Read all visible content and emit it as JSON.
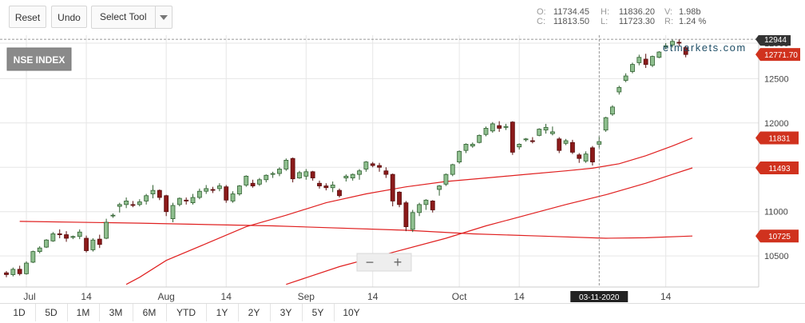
{
  "toolbar": {
    "reset_label": "Reset",
    "undo_label": "Undo",
    "select_tool_label": "Select Tool"
  },
  "ohlc": {
    "o_label": "O:",
    "o_value": "11734.45",
    "h_label": "H:",
    "h_value": "11836.20",
    "v_label": "V:",
    "v_value": "1.98b",
    "c_label": "C:",
    "c_value": "11813.50",
    "l_label": "L:",
    "l_value": "11723.30",
    "r_label": "R:",
    "r_value": "1.24 %"
  },
  "chart_title": "NSE INDEX",
  "watermark": "etmarkets.com",
  "crosshair_date": "03-11-2020",
  "zoom": {
    "minus": "−",
    "plus": "+"
  },
  "range_buttons": [
    "1D",
    "5D",
    "1M",
    "3M",
    "6M",
    "YTD",
    "1Y",
    "2Y",
    "3Y",
    "5Y",
    "10Y"
  ],
  "colors": {
    "up": "#2e7d32",
    "up_fill": "#8fbf8f",
    "down": "#8b1a1a",
    "ma": "#e02020",
    "last_tag": "#d0321e",
    "crosshair_tag": "#333333"
  },
  "chart_data": {
    "type": "candlestick",
    "ylim": [
      10150,
      12990
    ],
    "ytick_labels": [
      "10500",
      "11000",
      "11500",
      "12000",
      "12500",
      "12900"
    ],
    "ytick_values": [
      10500,
      11000,
      11500,
      12000,
      12500,
      12900
    ],
    "xtick_labels": [
      "Jul",
      "14",
      "Aug",
      "14",
      "Sep",
      "14",
      "Oct",
      "14",
      "14"
    ],
    "xtick_index": [
      3,
      12,
      24,
      33,
      45,
      55,
      68,
      77,
      99
    ],
    "crosshair_index": 89,
    "crosshair_price_label": "12944",
    "last_price_label": "12771.70",
    "last_price": 12772,
    "series": [
      {
        "name": "11831",
        "data": [
          10950,
          10950,
          10950,
          10950,
          10950,
          10950,
          10950,
          10950,
          10950,
          10950,
          10950,
          10950,
          10950,
          10950,
          10950,
          10950,
          10950,
          10950,
          10950,
          10950,
          10950,
          10950,
          10950,
          10950,
          10950,
          10950,
          10950,
          10950,
          10950,
          10950,
          10950,
          10950,
          10950,
          10950,
          10950,
          10950,
          10950,
          10950,
          10950,
          10950,
          10950,
          10950,
          10950,
          10950,
          10950,
          10950,
          10950,
          10950,
          10950,
          10950,
          10950,
          10950,
          10950,
          10950,
          10950,
          10950,
          10950,
          10950,
          10950,
          10950,
          10950,
          10950,
          10950,
          10950,
          10950,
          10950,
          10950,
          10950,
          10950,
          10950,
          10950,
          10950,
          10950,
          10950,
          10950,
          10950,
          10950,
          10950,
          10950,
          10950,
          10950,
          10950,
          10950,
          10950,
          10950,
          10950,
          10950,
          10950,
          10950,
          10950,
          10950,
          10950,
          10950,
          10950,
          10950,
          10950,
          10950,
          10950,
          10950,
          10950,
          10950,
          10950,
          10950
        ]
      },
      {
        "name": "11493",
        "data": []
      },
      {
        "name": "10725",
        "data": []
      }
    ],
    "ma_lines": [
      {
        "label": "11831",
        "points": [
          [
            18,
            10180
          ],
          [
            20,
            10260
          ],
          [
            24,
            10450
          ],
          [
            30,
            10640
          ],
          [
            36,
            10830
          ],
          [
            42,
            10960
          ],
          [
            48,
            11100
          ],
          [
            54,
            11200
          ],
          [
            60,
            11280
          ],
          [
            66,
            11340
          ],
          [
            72,
            11380
          ],
          [
            78,
            11420
          ],
          [
            84,
            11460
          ],
          [
            88,
            11490
          ],
          [
            92,
            11540
          ],
          [
            96,
            11630
          ],
          [
            100,
            11740
          ],
          [
            103,
            11831
          ]
        ]
      },
      {
        "label": "11493",
        "points": [
          [
            42,
            10180
          ],
          [
            50,
            10380
          ],
          [
            58,
            10540
          ],
          [
            66,
            10700
          ],
          [
            72,
            10840
          ],
          [
            78,
            10960
          ],
          [
            84,
            11080
          ],
          [
            90,
            11190
          ],
          [
            96,
            11320
          ],
          [
            100,
            11420
          ],
          [
            103,
            11493
          ]
        ]
      },
      {
        "label": "10725",
        "points": [
          [
            2,
            10890
          ],
          [
            20,
            10870
          ],
          [
            40,
            10840
          ],
          [
            60,
            10790
          ],
          [
            70,
            10750
          ],
          [
            80,
            10725
          ],
          [
            90,
            10700
          ],
          [
            96,
            10705
          ],
          [
            103,
            10725
          ]
        ]
      }
    ],
    "candles": [
      [
        10310,
        10330,
        10260,
        10290
      ],
      [
        10290,
        10370,
        10270,
        10350
      ],
      [
        10350,
        10390,
        10280,
        10300
      ],
      [
        10300,
        10440,
        10290,
        10420
      ],
      [
        10430,
        10560,
        10420,
        10550
      ],
      [
        10550,
        10610,
        10530,
        10590
      ],
      [
        10600,
        10690,
        10590,
        10680
      ],
      [
        10670,
        10770,
        10660,
        10750
      ],
      [
        10750,
        10800,
        10700,
        10740
      ],
      [
        10740,
        10780,
        10660,
        10700
      ],
      [
        10710,
        10730,
        10690,
        10720
      ],
      [
        10720,
        10800,
        10690,
        10770
      ],
      [
        10700,
        10730,
        10540,
        10560
      ],
      [
        10570,
        10700,
        10550,
        10680
      ],
      [
        10690,
        10740,
        10590,
        10630
      ],
      [
        10700,
        10920,
        10690,
        10880
      ],
      [
        10960,
        10980,
        10930,
        10960
      ],
      [
        11060,
        11100,
        10990,
        11080
      ],
      [
        11080,
        11160,
        11040,
        11120
      ],
      [
        11080,
        11120,
        11050,
        11070
      ],
      [
        11080,
        11140,
        11060,
        11110
      ],
      [
        11120,
        11200,
        11080,
        11180
      ],
      [
        11200,
        11300,
        11150,
        11240
      ],
      [
        11240,
        11250,
        11130,
        11160
      ],
      [
        11180,
        11190,
        10950,
        11000
      ],
      [
        10920,
        11100,
        10880,
        11070
      ],
      [
        11080,
        11160,
        11060,
        11150
      ],
      [
        11130,
        11160,
        11080,
        11120
      ],
      [
        11100,
        11200,
        11080,
        11160
      ],
      [
        11160,
        11260,
        11140,
        11230
      ],
      [
        11230,
        11300,
        11200,
        11260
      ],
      [
        11250,
        11280,
        11210,
        11240
      ],
      [
        11260,
        11320,
        11230,
        11290
      ],
      [
        11280,
        11300,
        11100,
        11130
      ],
      [
        11120,
        11230,
        11100,
        11200
      ],
      [
        11200,
        11300,
        11180,
        11290
      ],
      [
        11300,
        11410,
        11280,
        11400
      ],
      [
        11320,
        11360,
        11270,
        11290
      ],
      [
        11310,
        11380,
        11290,
        11360
      ],
      [
        11360,
        11420,
        11330,
        11410
      ],
      [
        11420,
        11450,
        11380,
        11430
      ],
      [
        11430,
        11500,
        11400,
        11480
      ],
      [
        11480,
        11600,
        11460,
        11580
      ],
      [
        11600,
        11610,
        11330,
        11370
      ],
      [
        11380,
        11460,
        11370,
        11440
      ],
      [
        11400,
        11480,
        11360,
        11450
      ],
      [
        11450,
        11460,
        11350,
        11380
      ],
      [
        11320,
        11350,
        11260,
        11290
      ],
      [
        11290,
        11320,
        11240,
        11270
      ],
      [
        11270,
        11340,
        11220,
        11300
      ],
      [
        11240,
        11260,
        11160,
        11180
      ],
      [
        11380,
        11420,
        11340,
        11400
      ],
      [
        11380,
        11430,
        11350,
        11420
      ],
      [
        11420,
        11480,
        11360,
        11460
      ],
      [
        11480,
        11570,
        11450,
        11560
      ],
      [
        11540,
        11560,
        11500,
        11520
      ],
      [
        11520,
        11550,
        11450,
        11500
      ],
      [
        11460,
        11500,
        11380,
        11420
      ],
      [
        11420,
        11430,
        11060,
        11120
      ],
      [
        11220,
        11230,
        11050,
        11080
      ],
      [
        11100,
        11120,
        10780,
        10830
      ],
      [
        10800,
        11020,
        10770,
        10990
      ],
      [
        10990,
        11100,
        10950,
        11080
      ],
      [
        11080,
        11140,
        11020,
        11130
      ],
      [
        11120,
        11130,
        10990,
        11020
      ],
      [
        11250,
        11300,
        11180,
        11290
      ],
      [
        11310,
        11430,
        11290,
        11420
      ],
      [
        11420,
        11540,
        11400,
        11530
      ],
      [
        11560,
        11690,
        11540,
        11680
      ],
      [
        11690,
        11770,
        11660,
        11760
      ],
      [
        11740,
        11780,
        11720,
        11760
      ],
      [
        11780,
        11870,
        11770,
        11860
      ],
      [
        11870,
        11960,
        11850,
        11940
      ],
      [
        11910,
        12010,
        11890,
        11990
      ],
      [
        11970,
        12020,
        11900,
        11940
      ],
      [
        11950,
        11990,
        11920,
        11960
      ],
      [
        12010,
        12020,
        11640,
        11670
      ],
      [
        11730,
        11770,
        11700,
        11760
      ],
      [
        11810,
        11830,
        11790,
        11820
      ],
      [
        11800,
        11840,
        11770,
        11790
      ],
      [
        11860,
        11940,
        11850,
        11930
      ],
      [
        11920,
        11990,
        11880,
        11950
      ],
      [
        11880,
        11960,
        11860,
        11900
      ],
      [
        11820,
        11840,
        11660,
        11690
      ],
      [
        11770,
        11820,
        11750,
        11800
      ],
      [
        11780,
        11810,
        11650,
        11670
      ],
      [
        11640,
        11660,
        11550,
        11600
      ],
      [
        11570,
        11680,
        11550,
        11650
      ],
      [
        11720,
        11740,
        11520,
        11560
      ],
      [
        11760,
        11850,
        11720,
        11790
      ],
      [
        11920,
        12070,
        11900,
        12060
      ],
      [
        12100,
        12200,
        12080,
        12180
      ],
      [
        12350,
        12420,
        12320,
        12400
      ],
      [
        12480,
        12560,
        12460,
        12530
      ],
      [
        12580,
        12680,
        12560,
        12660
      ],
      [
        12680,
        12770,
        12650,
        12740
      ],
      [
        12720,
        12780,
        12620,
        12660
      ],
      [
        12650,
        12760,
        12630,
        12750
      ],
      [
        12740,
        12810,
        12730,
        12800
      ],
      [
        12860,
        12900,
        12830,
        12870
      ],
      [
        12880,
        12940,
        12850,
        12920
      ],
      [
        12910,
        12944,
        12870,
        12900
      ],
      [
        12850,
        12870,
        12740,
        12772
      ]
    ]
  }
}
